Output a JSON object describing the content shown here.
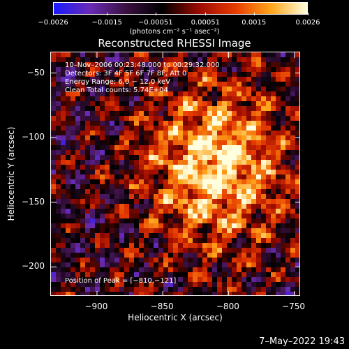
{
  "chart_data": {
    "type": "heatmap",
    "title": "Reconstructed RHESSI Image",
    "xlabel": "Heliocentric X (arcsec)",
    "ylabel": "Heliocentric Y (arcsec)",
    "xlim": [
      -935,
      -745
    ],
    "ylim": [
      -223,
      -34
    ],
    "x_ticks": [
      -900,
      -850,
      -800,
      -750
    ],
    "x_tick_labels": [
      "−900",
      "−850",
      "−800",
      "−750"
    ],
    "y_ticks": [
      -50,
      -100,
      -150,
      -200
    ],
    "y_tick_labels": [
      "−50",
      "−100",
      "−150",
      "−200"
    ],
    "peak": {
      "x": -810,
      "y": -121
    },
    "colorbar": {
      "min": -0.0026,
      "max": 0.0026,
      "ticks": [
        -0.0026,
        -0.0015,
        -0.00051,
        0.00051,
        0.0015,
        0.0026
      ],
      "tick_labels": [
        "−0.0026",
        "−0.0015",
        "−0.00051",
        "0.00051",
        "0.0015",
        "0.0026"
      ],
      "units": "(photons cm⁻² s⁻¹ asec⁻²)",
      "colors": [
        "#1a1aff",
        "#6a2bb5",
        "#3a1040",
        "#000000",
        "#9a0a00",
        "#e63a00",
        "#ffa51a",
        "#ffffe0"
      ]
    },
    "annotations": [
      "10–Nov–2006 00:23:48.000 to 00:29:32.000",
      "Detectors: 3F 4F 5F 6F 7F 8F, Att 0",
      "Energy Range: 6.0 − 12.0 keV",
      "Clean     Total counts: 5.74E+04",
      "Position of Peak = [−810,−121]"
    ]
  },
  "timestamp": "7–May–2022 19:43"
}
